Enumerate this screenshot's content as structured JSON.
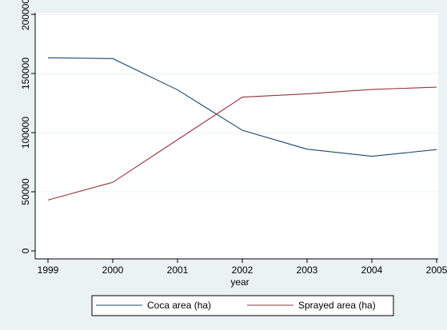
{
  "chart_data": {
    "type": "line",
    "title": "",
    "xlabel": "year",
    "ylabel": "",
    "x": [
      1999,
      2000,
      2001,
      2002,
      2003,
      2004,
      2005
    ],
    "xlim": [
      1999,
      2005
    ],
    "ylim": [
      0,
      200000
    ],
    "x_ticks": [
      "1999",
      "2000",
      "2001",
      "2002",
      "2003",
      "2004",
      "2005"
    ],
    "y_ticks": [
      0,
      50000,
      100000,
      150000,
      200000
    ],
    "y_tick_labels": [
      "0",
      "50000",
      "100000",
      "150000",
      "200000"
    ],
    "grid": true,
    "legend_position": "bottom",
    "series": [
      {
        "name": "Coca area (ha)",
        "color": "#1a476f",
        "values": [
          163300,
          162600,
          136200,
          102000,
          86000,
          80000,
          85700
        ]
      },
      {
        "name": "Sprayed area (ha)",
        "color": "#90353b",
        "values": [
          43000,
          58000,
          94000,
          130000,
          132800,
          136500,
          138500
        ]
      }
    ]
  }
}
